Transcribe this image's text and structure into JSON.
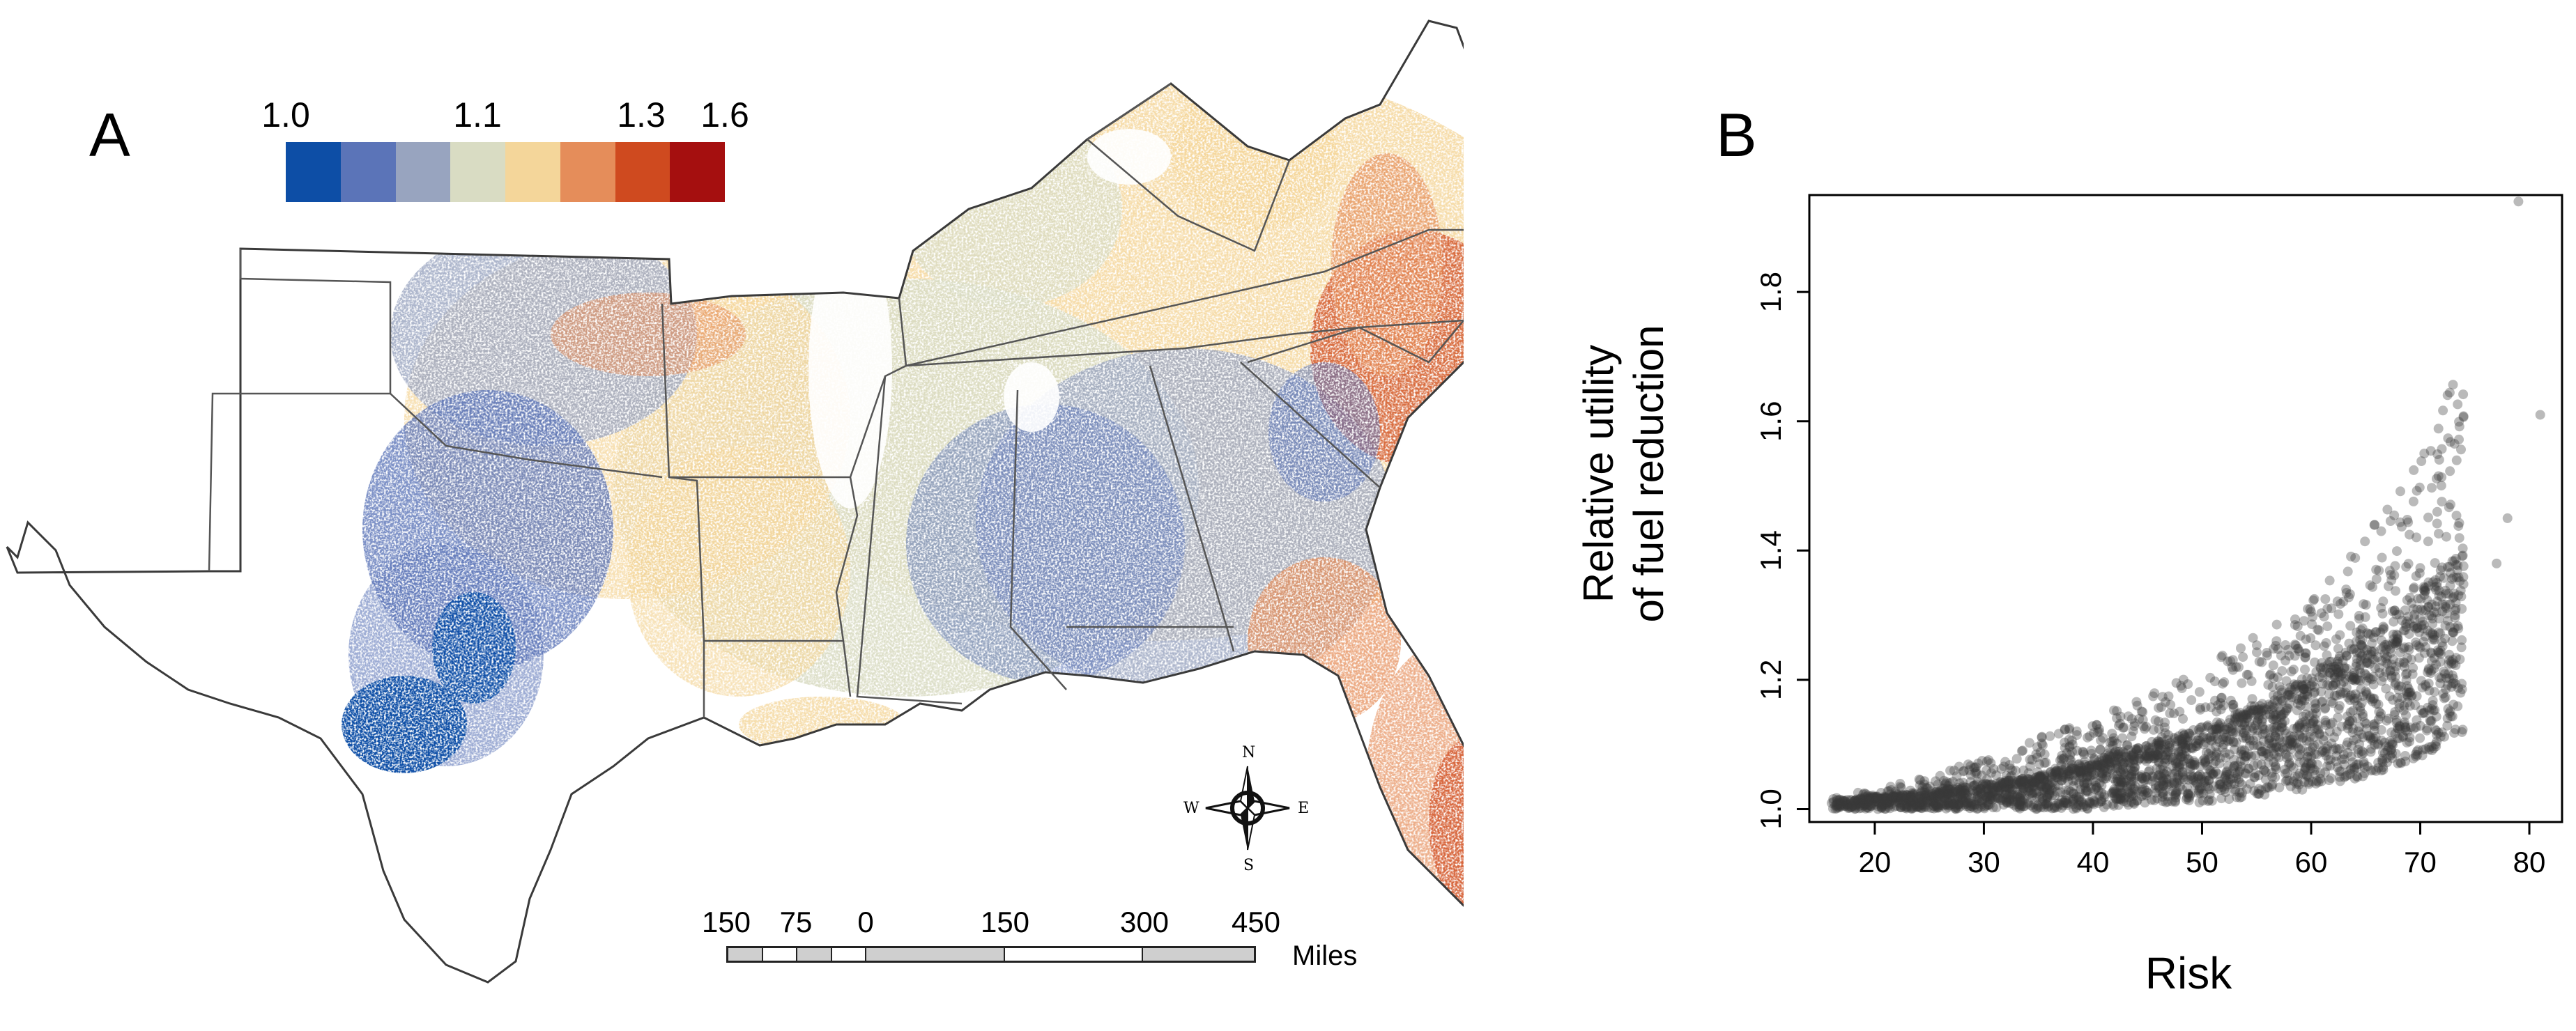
{
  "panels": {
    "a_label": "A",
    "b_label": "B"
  },
  "legend": {
    "tick_labels": [
      {
        "text": "1.0",
        "value": 1.0
      },
      {
        "text": "1.1",
        "value": 1.1
      },
      {
        "text": "1.3",
        "value": 1.3
      },
      {
        "text": "1.6",
        "value": 1.6
      }
    ],
    "colors": [
      "#0d4ea6",
      "#5b74b8",
      "#98a4bf",
      "#d9dcc3",
      "#f4d69a",
      "#e58d5a",
      "#cf4a1f",
      "#a50f0f"
    ]
  },
  "scale_bar": {
    "labels": [
      "150",
      "75",
      "0",
      "150",
      "300",
      "450"
    ],
    "units": "Miles"
  },
  "compass": {
    "n": "N",
    "s": "S",
    "e": "E",
    "w": "W"
  },
  "chart_data": {
    "type": "scatter",
    "title": "",
    "xlabel": "Risk",
    "ylabel": "Relative utility\nof fuel reduction",
    "ylabel_lines": [
      "Relative utility",
      "of fuel reduction"
    ],
    "xlim": [
      14,
      83
    ],
    "ylim": [
      0.98,
      1.95
    ],
    "xticks": [
      20,
      30,
      40,
      50,
      60,
      70,
      80
    ],
    "yticks": [
      1.0,
      1.2,
      1.4,
      1.6,
      1.8
    ],
    "grid": false,
    "point_color": "#3a3a3a",
    "envelope": [
      {
        "x": 16,
        "y_min": 1.0,
        "y_typical": 1.01,
        "y_max": 1.02
      },
      {
        "x": 20,
        "y_min": 1.0,
        "y_typical": 1.015,
        "y_max": 1.03
      },
      {
        "x": 25,
        "y_min": 1.0,
        "y_typical": 1.02,
        "y_max": 1.05
      },
      {
        "x": 30,
        "y_min": 1.0,
        "y_typical": 1.03,
        "y_max": 1.08
      },
      {
        "x": 35,
        "y_min": 1.0,
        "y_typical": 1.04,
        "y_max": 1.11
      },
      {
        "x": 40,
        "y_min": 1.0,
        "y_typical": 1.06,
        "y_max": 1.14
      },
      {
        "x": 45,
        "y_min": 1.01,
        "y_typical": 1.08,
        "y_max": 1.18
      },
      {
        "x": 50,
        "y_min": 1.01,
        "y_typical": 1.1,
        "y_max": 1.22
      },
      {
        "x": 55,
        "y_min": 1.02,
        "y_typical": 1.13,
        "y_max": 1.27
      },
      {
        "x": 60,
        "y_min": 1.03,
        "y_typical": 1.17,
        "y_max": 1.32
      },
      {
        "x": 65,
        "y_min": 1.05,
        "y_typical": 1.22,
        "y_max": 1.42
      },
      {
        "x": 70,
        "y_min": 1.08,
        "y_typical": 1.28,
        "y_max": 1.55
      },
      {
        "x": 74,
        "y_min": 1.12,
        "y_typical": 1.34,
        "y_max": 1.72
      }
    ],
    "outliers": [
      {
        "x": 79,
        "y": 1.94
      },
      {
        "x": 81,
        "y": 1.61
      },
      {
        "x": 78,
        "y": 1.45
      },
      {
        "x": 77,
        "y": 1.38
      }
    ]
  }
}
